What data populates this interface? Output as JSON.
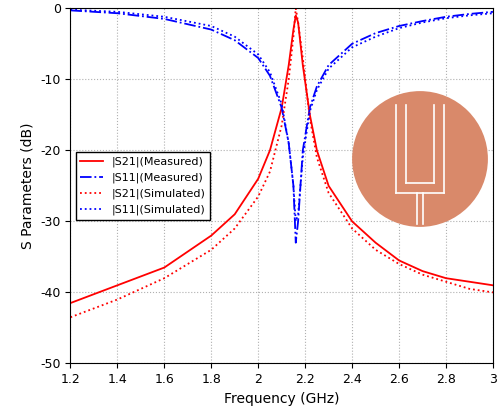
{
  "chart_data": {
    "type": "line",
    "x_label": "Frequency (GHz)",
    "y_label": "S Parameters (dB)",
    "x": [
      1.2,
      1.4,
      1.6,
      1.8,
      1.9,
      2.0,
      2.05,
      2.1,
      2.13,
      2.15,
      2.16,
      2.17,
      2.19,
      2.22,
      2.25,
      2.3,
      2.4,
      2.5,
      2.6,
      2.7,
      2.8,
      2.9,
      3.0
    ],
    "series": [
      {
        "name": "|S21|(Measured)",
        "color": "#ff0000",
        "line_style": "solid",
        "values": [
          -41.5,
          -39,
          -36.5,
          -32,
          -29,
          -24,
          -20,
          -14,
          -8,
          -3,
          -1,
          -2,
          -8,
          -15,
          -20,
          -25,
          -30,
          -33,
          -35.5,
          -37,
          -38,
          -38.5,
          -39
        ]
      },
      {
        "name": "|S11|(Measured)",
        "color": "#0000ff",
        "line_style": "dashdot",
        "values": [
          -0.3,
          -0.7,
          -1.5,
          -3,
          -4.5,
          -7,
          -9.5,
          -14,
          -19,
          -25,
          -33,
          -30,
          -20,
          -14,
          -11,
          -8,
          -5,
          -3.5,
          -2.5,
          -1.8,
          -1.2,
          -0.8,
          -0.5
        ]
      },
      {
        "name": "|S21|(Simulated)",
        "color": "#ff0000",
        "line_style": "dotted",
        "values": [
          -43.5,
          -41,
          -38,
          -34,
          -31,
          -26.5,
          -23,
          -16.5,
          -10,
          -4,
          0,
          -2,
          -7,
          -15.5,
          -21,
          -26,
          -31,
          -34,
          -36,
          -37.5,
          -38.5,
          -39.5,
          -40
        ]
      },
      {
        "name": "|S11|(Simulated)",
        "color": "#0000ff",
        "line_style": "dotted",
        "values": [
          -0.2,
          -0.5,
          -1.2,
          -2.5,
          -4,
          -6.5,
          -9,
          -13.5,
          -19,
          -25,
          -30,
          -29,
          -21,
          -14.5,
          -11.5,
          -8.5,
          -5.5,
          -4,
          -2.8,
          -2,
          -1.4,
          -1,
          -0.7
        ]
      }
    ],
    "xlim": [
      1.2,
      3.0
    ],
    "ylim": [
      -50,
      0
    ],
    "xticks": [
      1.2,
      1.4,
      1.6,
      1.8,
      2,
      2.2,
      2.4,
      2.6,
      2.8,
      3
    ],
    "yticks": [
      -50,
      -40,
      -30,
      -20,
      -10,
      0
    ],
    "grid": true,
    "legend": "center left"
  }
}
